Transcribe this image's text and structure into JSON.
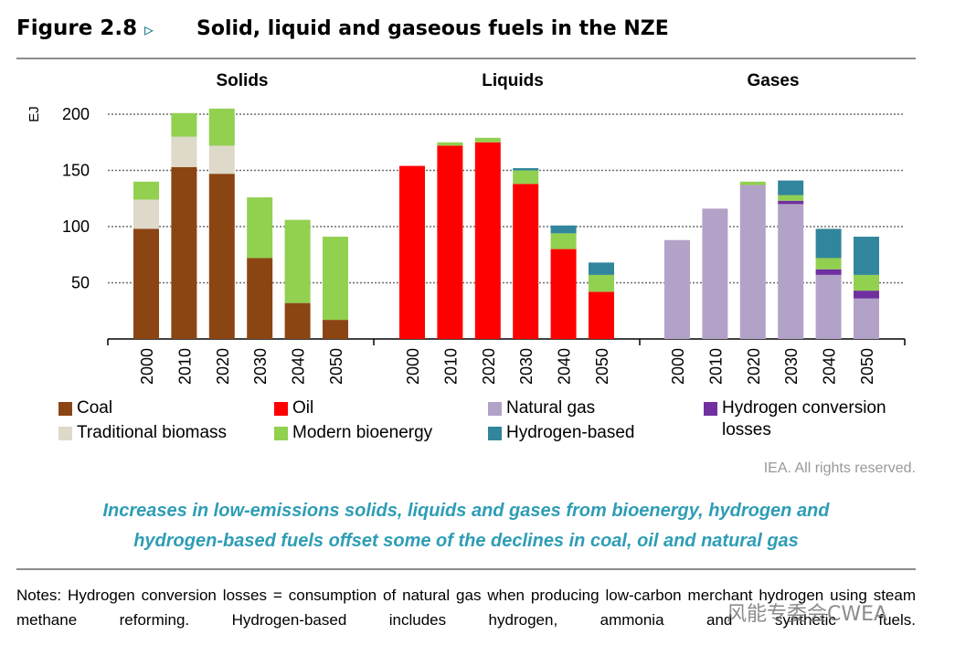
{
  "figure": {
    "label": "Figure 2.8",
    "arrow": "▹",
    "caption": "Solid, liquid and gaseous fuels in the NZE"
  },
  "colors": {
    "coal": "#8b4513",
    "traditional_biomass": "#ded9c9",
    "modern_bioenergy": "#92d050",
    "oil": "#ff0000",
    "natural_gas": "#b3a2c7",
    "hydrogen_conversion_losses": "#7030a0",
    "hydrogen_based": "#31859c"
  },
  "chart_data": {
    "type": "bar",
    "stacked": true,
    "ylabel": "EJ",
    "ylim": [
      0,
      200
    ],
    "yticks": [
      50,
      100,
      150,
      200
    ],
    "grid": true,
    "categories": [
      "2000",
      "2010",
      "2020",
      "2030",
      "2040",
      "2050"
    ],
    "panels": [
      {
        "title": "Solids",
        "series": [
          {
            "name": "Coal",
            "color_key": "coal",
            "values": [
              98,
              153,
              147,
              72,
              32,
              17
            ]
          },
          {
            "name": "Traditional biomass",
            "color_key": "traditional_biomass",
            "values": [
              26,
              27,
              25,
              0,
              0,
              0
            ]
          },
          {
            "name": "Modern bioenergy",
            "color_key": "modern_bioenergy",
            "values": [
              16,
              21,
              33,
              54,
              74,
              74
            ]
          }
        ]
      },
      {
        "title": "Liquids",
        "series": [
          {
            "name": "Oil",
            "color_key": "oil",
            "values": [
              154,
              172,
              175,
              138,
              80,
              42
            ]
          },
          {
            "name": "Modern bioenergy",
            "color_key": "modern_bioenergy",
            "values": [
              0,
              3,
              4,
              12,
              14,
              15
            ]
          },
          {
            "name": "Hydrogen-based",
            "color_key": "hydrogen_based",
            "values": [
              0,
              0,
              0,
              2,
              7,
              11
            ]
          }
        ]
      },
      {
        "title": "Gases",
        "series": [
          {
            "name": "Natural gas",
            "color_key": "natural_gas",
            "values": [
              88,
              116,
              137,
              120,
              57,
              36
            ]
          },
          {
            "name": "Hydrogen conversion losses",
            "color_key": "hydrogen_conversion_losses",
            "values": [
              0,
              0,
              0,
              3,
              5,
              7
            ]
          },
          {
            "name": "Modern bioenergy",
            "color_key": "modern_bioenergy",
            "values": [
              0,
              0,
              3,
              5,
              10,
              14
            ]
          },
          {
            "name": "Hydrogen-based",
            "color_key": "hydrogen_based",
            "values": [
              0,
              0,
              0,
              13,
              26,
              34
            ]
          }
        ]
      }
    ],
    "legend": [
      {
        "label": "Coal",
        "color_key": "coal"
      },
      {
        "label": "Oil",
        "color_key": "oil"
      },
      {
        "label": "Natural gas",
        "color_key": "natural_gas"
      },
      {
        "label": "Hydrogen conversion",
        "label2": "losses",
        "color_key": "hydrogen_conversion_losses"
      },
      {
        "label": "Traditional biomass",
        "color_key": "traditional_biomass"
      },
      {
        "label": "Modern bioenergy",
        "color_key": "modern_bioenergy"
      },
      {
        "label": "Hydrogen-based",
        "color_key": "hydrogen_based"
      }
    ]
  },
  "credit": "IEA. All rights reserved.",
  "subtitle_lines": [
    "Increases in low-emissions solids, liquids and gases from bioenergy, hydrogen and",
    "hydrogen-based fuels offset some of the declines in coal, oil and natural gas"
  ],
  "notes": "Notes: Hydrogen conversion losses = consumption of natural gas when producing low-carbon merchant hydrogen using steam methane reforming. Hydrogen-based includes hydrogen, ammonia and synthetic fuels.",
  "watermark": "风能专委会CWEA"
}
